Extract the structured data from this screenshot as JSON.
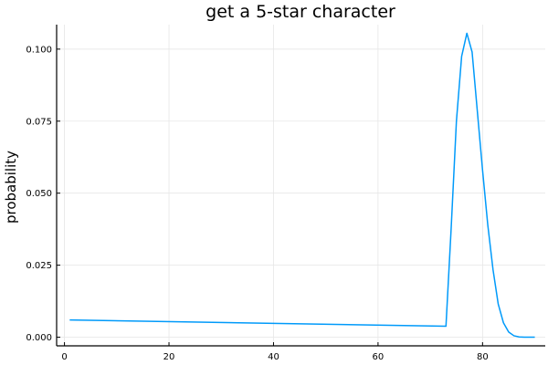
{
  "chart_data": {
    "type": "line",
    "title": "get a 5-star character",
    "xlabel": "",
    "ylabel": "probability",
    "xlim": [
      -1.5,
      92
    ],
    "ylim": [
      -0.003,
      0.1085
    ],
    "xticks": [
      0,
      20,
      40,
      60,
      80
    ],
    "yticks": [
      0.0,
      0.025,
      0.05,
      0.075,
      0.1
    ],
    "xtick_labels": [
      "0",
      "20",
      "40",
      "60",
      "80"
    ],
    "ytick_labels": [
      "0.000",
      "0.025",
      "0.050",
      "0.075",
      "0.100"
    ],
    "grid": true,
    "legend": "none",
    "series": [
      {
        "color": "#009AFA",
        "x": [
          1,
          73,
          74,
          75,
          76,
          77,
          78,
          79,
          80,
          81,
          82,
          83,
          84,
          85,
          86,
          87,
          88,
          89,
          90
        ],
        "y": [
          0.006,
          0.0038,
          0.038,
          0.075,
          0.0975,
          0.1055,
          0.099,
          0.0785,
          0.058,
          0.039,
          0.0235,
          0.0115,
          0.005,
          0.0018,
          0.0005,
          0.0001,
          0.0,
          0.0,
          0.0
        ]
      }
    ]
  }
}
